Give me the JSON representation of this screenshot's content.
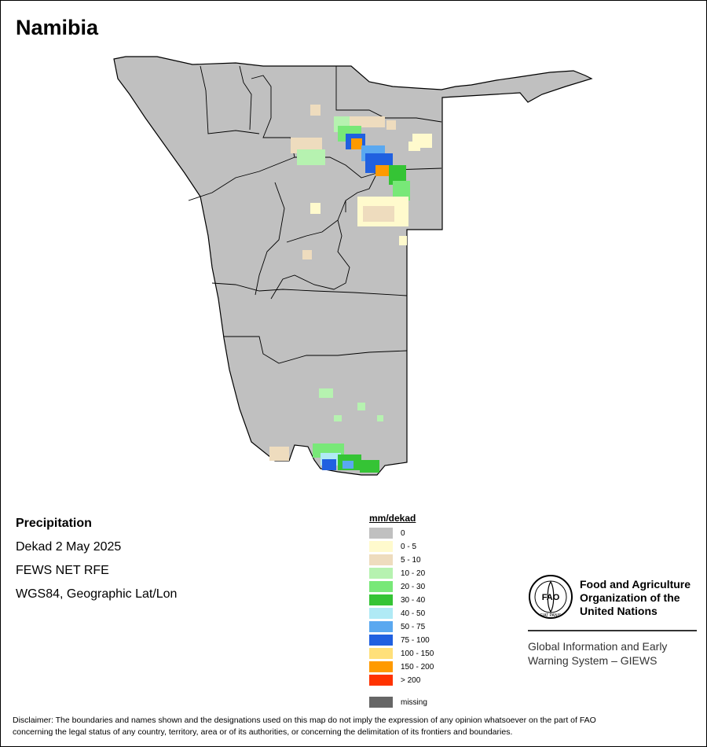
{
  "map": {
    "title": "Namibia",
    "variable": "Precipitation",
    "period": "Dekad 2 May 2025",
    "source": "FEWS NET RFE",
    "projection": "WGS84, Geographic Lat/Lon"
  },
  "legend": {
    "title": "mm/dekad",
    "classes": [
      {
        "label": "0",
        "color": "#c0c0c0"
      },
      {
        "label": "0 - 5",
        "color": "#fffacd"
      },
      {
        "label": "5 - 10",
        "color": "#eedcbe"
      },
      {
        "label": "10 - 20",
        "color": "#b6f2b0"
      },
      {
        "label": "20 - 30",
        "color": "#78e878"
      },
      {
        "label": "30 - 40",
        "color": "#35c435"
      },
      {
        "label": "40 - 50",
        "color": "#b0eaf5"
      },
      {
        "label": "50 - 75",
        "color": "#5aa8f0"
      },
      {
        "label": "75 - 100",
        "color": "#2060e0"
      },
      {
        "label": "100 - 150",
        "color": "#ffe07a"
      },
      {
        "label": "150 - 200",
        "color": "#ff9a00"
      },
      {
        "label": "> 200",
        "color": "#ff3300"
      },
      {
        "label": "missing",
        "color": "#666666"
      }
    ]
  },
  "logo": {
    "name_line1": "Food and Agriculture",
    "name_line2": "Organization of the",
    "name_line3": "United Nations",
    "giews_line1": "Global Information and Early",
    "giews_line2": "Warning System – GIEWS",
    "mark_text": "FAO",
    "motto": "FIAT PANIS"
  },
  "disclaimer": {
    "line1": "Disclaimer: The boundaries and names shown and the designations used on this map do not imply the expression of any opinion whatsoever on the part of FAO",
    "line2": "concerning the legal status of any country, territory, area or of its authorities, or concerning the delimitation of its frontiers and boundaries."
  }
}
